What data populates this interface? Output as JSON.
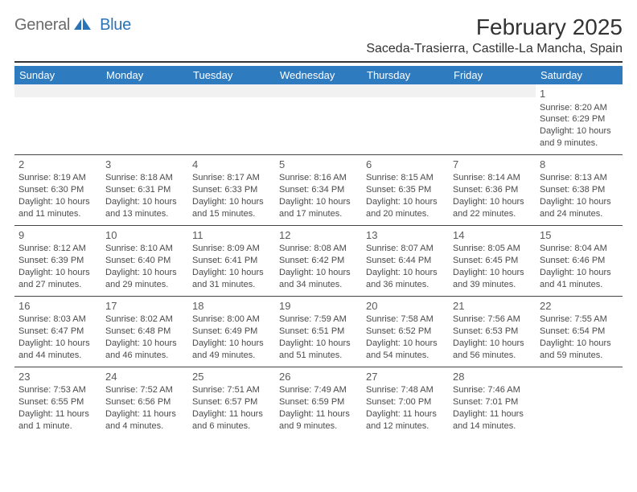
{
  "logo": {
    "text1": "General",
    "text2": "Blue"
  },
  "title": "February 2025",
  "location": "Saceda-Trasierra, Castille-La Mancha, Spain",
  "day_headers": [
    "Sunday",
    "Monday",
    "Tuesday",
    "Wednesday",
    "Thursday",
    "Friday",
    "Saturday"
  ],
  "colors": {
    "header_bg": "#2f7bbf",
    "header_text": "#ffffff",
    "text": "#333333",
    "muted": "#6b6b6b",
    "logo_blue": "#2a73b8",
    "rule": "#333333",
    "empty_bg": "#f1f1f1"
  },
  "weeks": [
    [
      null,
      null,
      null,
      null,
      null,
      null,
      {
        "n": "1",
        "sunrise": "Sunrise: 8:20 AM",
        "sunset": "Sunset: 6:29 PM",
        "daylight1": "Daylight: 10 hours",
        "daylight2": "and 9 minutes."
      }
    ],
    [
      {
        "n": "2",
        "sunrise": "Sunrise: 8:19 AM",
        "sunset": "Sunset: 6:30 PM",
        "daylight1": "Daylight: 10 hours",
        "daylight2": "and 11 minutes."
      },
      {
        "n": "3",
        "sunrise": "Sunrise: 8:18 AM",
        "sunset": "Sunset: 6:31 PM",
        "daylight1": "Daylight: 10 hours",
        "daylight2": "and 13 minutes."
      },
      {
        "n": "4",
        "sunrise": "Sunrise: 8:17 AM",
        "sunset": "Sunset: 6:33 PM",
        "daylight1": "Daylight: 10 hours",
        "daylight2": "and 15 minutes."
      },
      {
        "n": "5",
        "sunrise": "Sunrise: 8:16 AM",
        "sunset": "Sunset: 6:34 PM",
        "daylight1": "Daylight: 10 hours",
        "daylight2": "and 17 minutes."
      },
      {
        "n": "6",
        "sunrise": "Sunrise: 8:15 AM",
        "sunset": "Sunset: 6:35 PM",
        "daylight1": "Daylight: 10 hours",
        "daylight2": "and 20 minutes."
      },
      {
        "n": "7",
        "sunrise": "Sunrise: 8:14 AM",
        "sunset": "Sunset: 6:36 PM",
        "daylight1": "Daylight: 10 hours",
        "daylight2": "and 22 minutes."
      },
      {
        "n": "8",
        "sunrise": "Sunrise: 8:13 AM",
        "sunset": "Sunset: 6:38 PM",
        "daylight1": "Daylight: 10 hours",
        "daylight2": "and 24 minutes."
      }
    ],
    [
      {
        "n": "9",
        "sunrise": "Sunrise: 8:12 AM",
        "sunset": "Sunset: 6:39 PM",
        "daylight1": "Daylight: 10 hours",
        "daylight2": "and 27 minutes."
      },
      {
        "n": "10",
        "sunrise": "Sunrise: 8:10 AM",
        "sunset": "Sunset: 6:40 PM",
        "daylight1": "Daylight: 10 hours",
        "daylight2": "and 29 minutes."
      },
      {
        "n": "11",
        "sunrise": "Sunrise: 8:09 AM",
        "sunset": "Sunset: 6:41 PM",
        "daylight1": "Daylight: 10 hours",
        "daylight2": "and 31 minutes."
      },
      {
        "n": "12",
        "sunrise": "Sunrise: 8:08 AM",
        "sunset": "Sunset: 6:42 PM",
        "daylight1": "Daylight: 10 hours",
        "daylight2": "and 34 minutes."
      },
      {
        "n": "13",
        "sunrise": "Sunrise: 8:07 AM",
        "sunset": "Sunset: 6:44 PM",
        "daylight1": "Daylight: 10 hours",
        "daylight2": "and 36 minutes."
      },
      {
        "n": "14",
        "sunrise": "Sunrise: 8:05 AM",
        "sunset": "Sunset: 6:45 PM",
        "daylight1": "Daylight: 10 hours",
        "daylight2": "and 39 minutes."
      },
      {
        "n": "15",
        "sunrise": "Sunrise: 8:04 AM",
        "sunset": "Sunset: 6:46 PM",
        "daylight1": "Daylight: 10 hours",
        "daylight2": "and 41 minutes."
      }
    ],
    [
      {
        "n": "16",
        "sunrise": "Sunrise: 8:03 AM",
        "sunset": "Sunset: 6:47 PM",
        "daylight1": "Daylight: 10 hours",
        "daylight2": "and 44 minutes."
      },
      {
        "n": "17",
        "sunrise": "Sunrise: 8:02 AM",
        "sunset": "Sunset: 6:48 PM",
        "daylight1": "Daylight: 10 hours",
        "daylight2": "and 46 minutes."
      },
      {
        "n": "18",
        "sunrise": "Sunrise: 8:00 AM",
        "sunset": "Sunset: 6:49 PM",
        "daylight1": "Daylight: 10 hours",
        "daylight2": "and 49 minutes."
      },
      {
        "n": "19",
        "sunrise": "Sunrise: 7:59 AM",
        "sunset": "Sunset: 6:51 PM",
        "daylight1": "Daylight: 10 hours",
        "daylight2": "and 51 minutes."
      },
      {
        "n": "20",
        "sunrise": "Sunrise: 7:58 AM",
        "sunset": "Sunset: 6:52 PM",
        "daylight1": "Daylight: 10 hours",
        "daylight2": "and 54 minutes."
      },
      {
        "n": "21",
        "sunrise": "Sunrise: 7:56 AM",
        "sunset": "Sunset: 6:53 PM",
        "daylight1": "Daylight: 10 hours",
        "daylight2": "and 56 minutes."
      },
      {
        "n": "22",
        "sunrise": "Sunrise: 7:55 AM",
        "sunset": "Sunset: 6:54 PM",
        "daylight1": "Daylight: 10 hours",
        "daylight2": "and 59 minutes."
      }
    ],
    [
      {
        "n": "23",
        "sunrise": "Sunrise: 7:53 AM",
        "sunset": "Sunset: 6:55 PM",
        "daylight1": "Daylight: 11 hours",
        "daylight2": "and 1 minute."
      },
      {
        "n": "24",
        "sunrise": "Sunrise: 7:52 AM",
        "sunset": "Sunset: 6:56 PM",
        "daylight1": "Daylight: 11 hours",
        "daylight2": "and 4 minutes."
      },
      {
        "n": "25",
        "sunrise": "Sunrise: 7:51 AM",
        "sunset": "Sunset: 6:57 PM",
        "daylight1": "Daylight: 11 hours",
        "daylight2": "and 6 minutes."
      },
      {
        "n": "26",
        "sunrise": "Sunrise: 7:49 AM",
        "sunset": "Sunset: 6:59 PM",
        "daylight1": "Daylight: 11 hours",
        "daylight2": "and 9 minutes."
      },
      {
        "n": "27",
        "sunrise": "Sunrise: 7:48 AM",
        "sunset": "Sunset: 7:00 PM",
        "daylight1": "Daylight: 11 hours",
        "daylight2": "and 12 minutes."
      },
      {
        "n": "28",
        "sunrise": "Sunrise: 7:46 AM",
        "sunset": "Sunset: 7:01 PM",
        "daylight1": "Daylight: 11 hours",
        "daylight2": "and 14 minutes."
      },
      null
    ]
  ]
}
